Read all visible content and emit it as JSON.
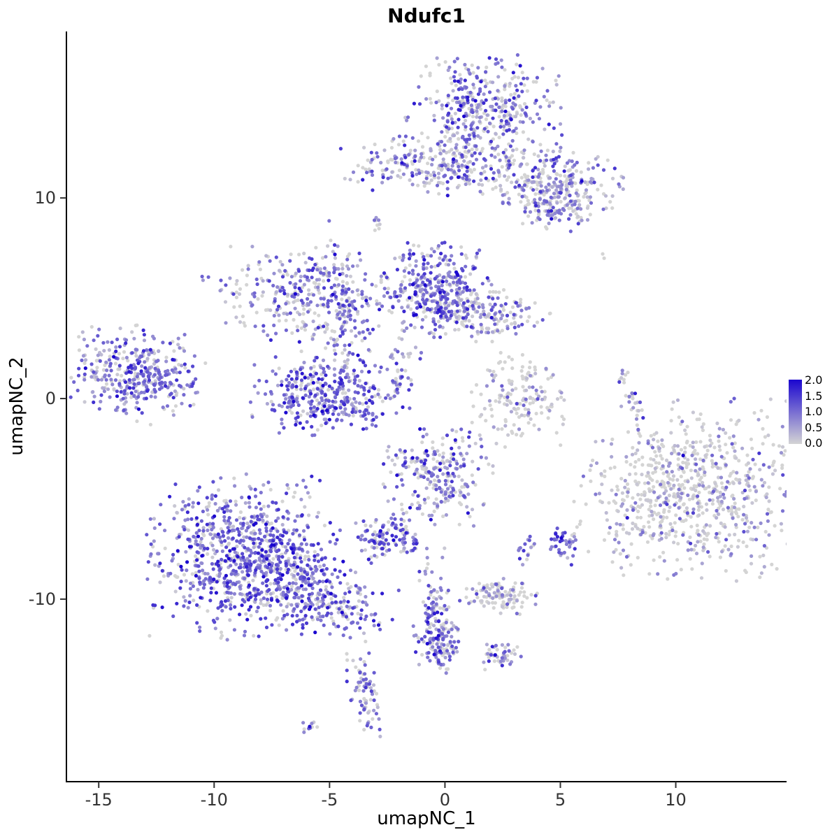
{
  "chart_data": {
    "type": "scatter",
    "title": "Ndufc1",
    "xlabel": "umapNC_1",
    "ylabel": "umapNC_2",
    "xlim": [
      -16.4,
      14.8
    ],
    "ylim": [
      -19.1,
      18.3
    ],
    "x_ticks": [
      -15,
      -10,
      -5,
      0,
      5,
      10
    ],
    "y_ticks": [
      -10,
      0,
      10
    ],
    "grid": false,
    "legend": {
      "position": "right",
      "ticks": [
        "2.0",
        "1.5",
        "1.0",
        "0.5",
        "0.0"
      ],
      "value_range": [
        0.0,
        2.0
      ],
      "low_color": "#d4d4d4",
      "high_color": "#1b06cf"
    },
    "point_radius_px": 2.6,
    "clusters": [
      {
        "name": "top-main",
        "cx": 1.7,
        "cy": 14.4,
        "rx": 1.5,
        "ry": 1.2,
        "angle": 0,
        "n": 380,
        "mean_expr": 0.85,
        "zero_frac": 0.3
      },
      {
        "name": "top-band-left",
        "cx": -1.3,
        "cy": 11.7,
        "rx": 1.5,
        "ry": 0.65,
        "angle": 5,
        "n": 170,
        "mean_expr": 0.75,
        "zero_frac": 0.35
      },
      {
        "name": "top-band-mid",
        "cx": 1.0,
        "cy": 11.3,
        "rx": 0.9,
        "ry": 0.7,
        "angle": 0,
        "n": 90,
        "mean_expr": 0.7,
        "zero_frac": 0.4
      },
      {
        "name": "top-right-arm",
        "cx": 4.3,
        "cy": 10.8,
        "rx": 1.6,
        "ry": 0.9,
        "angle": -20,
        "n": 260,
        "mean_expr": 0.7,
        "zero_frac": 0.4
      },
      {
        "name": "top-right-blob",
        "cx": 4.8,
        "cy": 9.8,
        "rx": 0.7,
        "ry": 0.6,
        "angle": 0,
        "n": 120,
        "mean_expr": 0.8,
        "zero_frac": 0.3
      },
      {
        "name": "mid-left-ring",
        "cx": -5.7,
        "cy": 4.9,
        "rx": 1.9,
        "ry": 1.2,
        "angle": -10,
        "n": 360,
        "mean_expr": 0.8,
        "zero_frac": 0.3
      },
      {
        "name": "mid-left-chain",
        "cx": -4.5,
        "cy": 4.8,
        "rx": 0.3,
        "ry": 2.2,
        "angle": 8,
        "n": 80,
        "mean_expr": 0.8,
        "zero_frac": 0.3
      },
      {
        "name": "mid-central",
        "cx": -0.4,
        "cy": 5.5,
        "rx": 1.0,
        "ry": 1.1,
        "angle": 0,
        "n": 320,
        "mean_expr": 0.95,
        "zero_frac": 0.2
      },
      {
        "name": "mid-central-right",
        "cx": 1.7,
        "cy": 4.3,
        "rx": 1.3,
        "ry": 0.7,
        "angle": -10,
        "n": 200,
        "mean_expr": 0.7,
        "zero_frac": 0.4
      },
      {
        "name": "u-cluster",
        "cx": -5.1,
        "cy": 0.3,
        "rx": 1.5,
        "ry": 0.95,
        "angle": 0,
        "n": 380,
        "mean_expr": 1.0,
        "zero_frac": 0.15
      },
      {
        "name": "far-left",
        "cx": -13.3,
        "cy": 1.3,
        "rx": 1.35,
        "ry": 1.05,
        "angle": -15,
        "n": 380,
        "mean_expr": 0.9,
        "zero_frac": 0.2
      },
      {
        "name": "mid-right-small",
        "cx": 3.2,
        "cy": 0.0,
        "rx": 0.95,
        "ry": 1.1,
        "angle": 0,
        "n": 160,
        "mean_expr": 0.4,
        "zero_frac": 0.6
      },
      {
        "name": "right-tiny-streak",
        "cx": 8.0,
        "cy": 0.3,
        "rx": 0.18,
        "ry": 0.75,
        "angle": 15,
        "n": 28,
        "mean_expr": 0.6,
        "zero_frac": 0.4
      },
      {
        "name": "big-right",
        "cx": 10.6,
        "cy": -4.6,
        "rx": 2.2,
        "ry": 2.0,
        "angle": 0,
        "n": 760,
        "mean_expr": 0.45,
        "zero_frac": 0.55
      },
      {
        "name": "center-lower",
        "cx": -0.3,
        "cy": -3.8,
        "rx": 1.05,
        "ry": 1.15,
        "angle": 0,
        "n": 260,
        "mean_expr": 0.8,
        "zero_frac": 0.3
      },
      {
        "name": "small-mid-lower",
        "cx": -2.5,
        "cy": -7.0,
        "rx": 0.65,
        "ry": 0.55,
        "angle": 0,
        "n": 120,
        "mean_expr": 0.95,
        "zero_frac": 0.2
      },
      {
        "name": "big-lower-left",
        "cx": -8.7,
        "cy": -7.9,
        "rx": 1.9,
        "ry": 1.8,
        "angle": 0,
        "n": 850,
        "mean_expr": 1.0,
        "zero_frac": 0.15
      },
      {
        "name": "lower-left-arm",
        "cx": -5.5,
        "cy": -9.8,
        "rx": 1.5,
        "ry": 0.8,
        "angle": -25,
        "n": 300,
        "mean_expr": 0.95,
        "zero_frac": 0.2
      },
      {
        "name": "small-pair",
        "cx": 3.5,
        "cy": -7.5,
        "rx": 0.2,
        "ry": 0.4,
        "angle": 0,
        "n": 16,
        "mean_expr": 0.9,
        "zero_frac": 0.2
      },
      {
        "name": "small-right-lower",
        "cx": 5.1,
        "cy": -7.3,
        "rx": 0.3,
        "ry": 0.45,
        "angle": 0,
        "n": 40,
        "mean_expr": 1.0,
        "zero_frac": 0.15
      },
      {
        "name": "lower-mid-band",
        "cx": 2.4,
        "cy": -9.8,
        "rx": 0.75,
        "ry": 0.4,
        "angle": -8,
        "n": 110,
        "mean_expr": 0.5,
        "zero_frac": 0.5
      },
      {
        "name": "chain-down",
        "cx": -0.4,
        "cy": -10.6,
        "rx": 0.35,
        "ry": 1.4,
        "angle": 5,
        "n": 110,
        "mean_expr": 0.85,
        "zero_frac": 0.25
      },
      {
        "name": "chain-bottom-blob",
        "cx": -0.3,
        "cy": -12.3,
        "rx": 0.5,
        "ry": 0.55,
        "angle": 0,
        "n": 90,
        "mean_expr": 0.9,
        "zero_frac": 0.2
      },
      {
        "name": "small-bottom-right",
        "cx": 2.3,
        "cy": -12.8,
        "rx": 0.45,
        "ry": 0.35,
        "angle": -10,
        "n": 45,
        "mean_expr": 0.8,
        "zero_frac": 0.3
      },
      {
        "name": "bottom-streak",
        "cx": -3.5,
        "cy": -14.7,
        "rx": 0.3,
        "ry": 1.0,
        "angle": 12,
        "n": 75,
        "mean_expr": 0.85,
        "zero_frac": 0.25
      },
      {
        "name": "bottom-tiny",
        "cx": -5.9,
        "cy": -16.3,
        "rx": 0.3,
        "ry": 0.22,
        "angle": 0,
        "n": 10,
        "mean_expr": 0.7,
        "zero_frac": 0.3
      },
      {
        "name": "speck-upper-left",
        "cx": -10.5,
        "cy": 6.2,
        "rx": 0.12,
        "ry": 0.15,
        "angle": 0,
        "n": 3,
        "mean_expr": 1.0,
        "zero_frac": 0.0
      },
      {
        "name": "speck-chain-upper",
        "cx": -2.9,
        "cy": 9.0,
        "rx": 0.12,
        "ry": 0.45,
        "angle": 0,
        "n": 8,
        "mean_expr": 0.5,
        "zero_frac": 0.4
      },
      {
        "name": "speck-upper-right",
        "cx": 6.8,
        "cy": 7.2,
        "rx": 0.1,
        "ry": 0.1,
        "angle": 0,
        "n": 2,
        "mean_expr": 0.2,
        "zero_frac": 0.5
      },
      {
        "name": "bridge-central",
        "cx": -1.9,
        "cy": 1.4,
        "rx": 0.35,
        "ry": 0.85,
        "angle": -10,
        "n": 40,
        "mean_expr": 0.7,
        "zero_frac": 0.35
      }
    ]
  }
}
